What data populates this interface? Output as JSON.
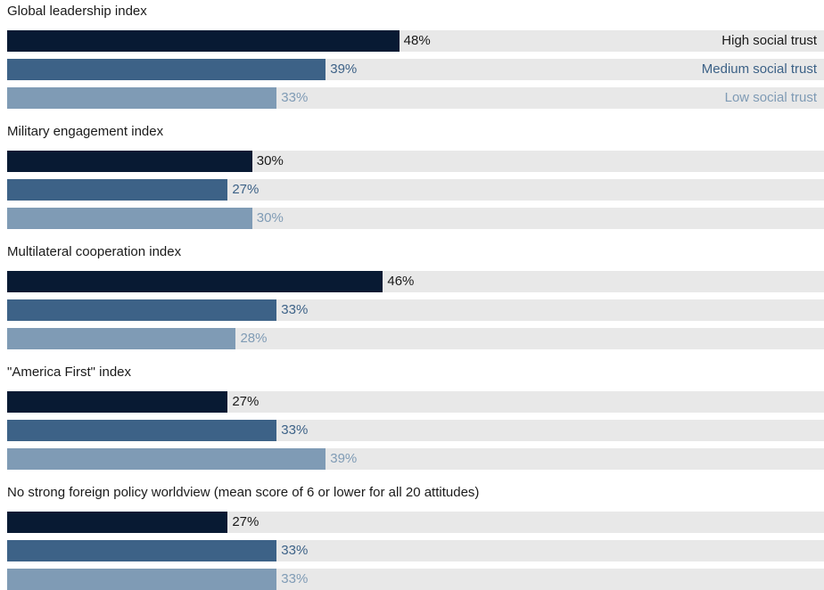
{
  "colors": {
    "high": "#081a33",
    "medium": "#3d6287",
    "low": "#7f9bb5",
    "track": "#e8e8e8"
  },
  "chart_data": {
    "type": "bar",
    "orientation": "horizontal",
    "xlim": [
      0,
      100
    ],
    "grid": false,
    "legend": "right, inline with first group",
    "series": [
      {
        "name": "High social trust",
        "color": "#081a33"
      },
      {
        "name": "Medium social trust",
        "color": "#3d6287"
      },
      {
        "name": "Low social trust",
        "color": "#7f9bb5"
      }
    ],
    "groups": [
      {
        "title": "Global leadership index",
        "values": [
          48,
          39,
          33
        ],
        "labels": [
          "48%",
          "39%",
          "33%"
        ]
      },
      {
        "title": "Military engagement index",
        "values": [
          30,
          27,
          30
        ],
        "labels": [
          "30%",
          "27%",
          "30%"
        ]
      },
      {
        "title": "Multilateral cooperation index",
        "values": [
          46,
          33,
          28
        ],
        "labels": [
          "46%",
          "33%",
          "28%"
        ]
      },
      {
        "title": "\"America First\" index",
        "values": [
          27,
          33,
          39
        ],
        "labels": [
          "27%",
          "33%",
          "39%"
        ]
      },
      {
        "title": "No strong foreign policy worldview (mean score of 6 or lower for all 20 attitudes)",
        "values": [
          27,
          33,
          33
        ],
        "labels": [
          "27%",
          "33%",
          "33%"
        ]
      }
    ]
  }
}
